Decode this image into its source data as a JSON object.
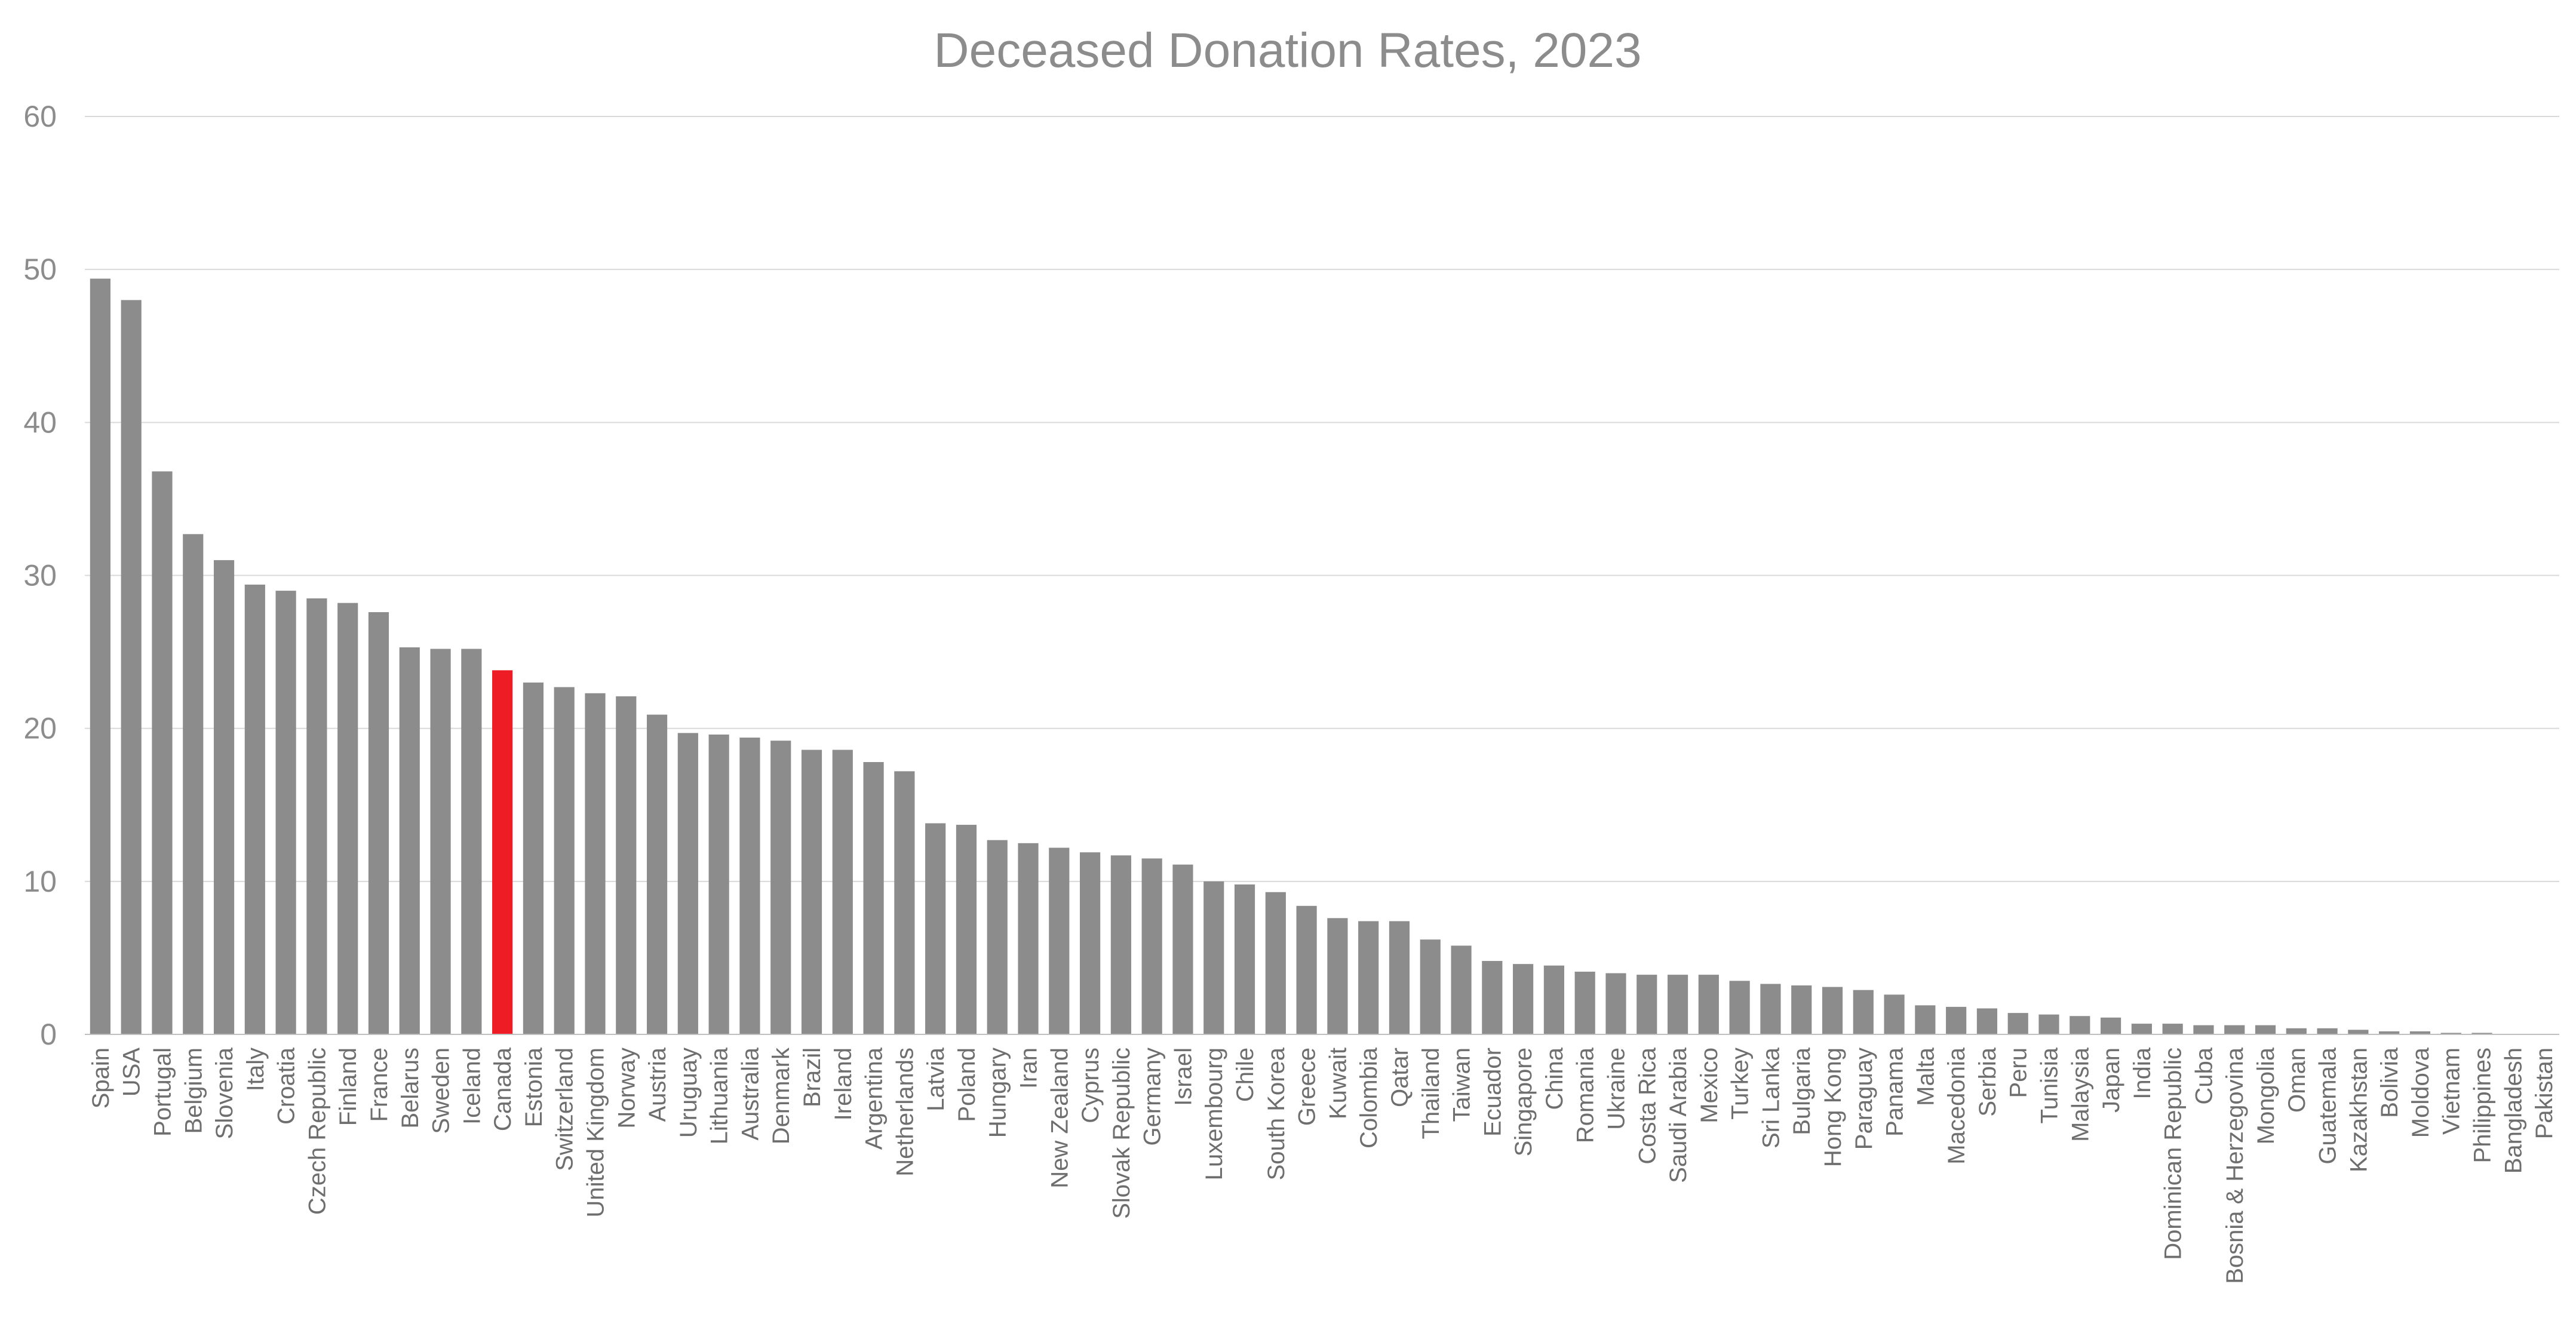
{
  "chart_data": {
    "type": "bar",
    "title": "Deceased Donation Rates, 2023",
    "xlabel": "",
    "ylabel": "",
    "ylim": [
      0,
      60
    ],
    "yticks": [
      0,
      10,
      20,
      30,
      40,
      50,
      60
    ],
    "grid": true,
    "legend": "none",
    "bar_color": "#8c8c8c",
    "highlight_color": "#ee1c24",
    "highlight": "Canada",
    "categories": [
      "Spain",
      "USA",
      "Portugal",
      "Belgium",
      "Slovenia",
      "Italy",
      "Croatia",
      "Czech Republic",
      "Finland",
      "France",
      "Belarus",
      "Sweden",
      "Iceland",
      "Canada",
      "Estonia",
      "Switzerland",
      "United Kingdom",
      "Norway",
      "Austria",
      "Uruguay",
      "Lithuania",
      "Australia",
      "Denmark",
      "Brazil",
      "Ireland",
      "Argentina",
      "Netherlands",
      "Latvia",
      "Poland",
      "Hungary",
      "Iran",
      "New Zealand",
      "Cyprus",
      "Slovak Republic",
      "Germany",
      "Israel",
      "Luxembourg",
      "Chile",
      "South Korea",
      "Greece",
      "Kuwait",
      "Colombia",
      "Qatar",
      "Thailand",
      "Taiwan",
      "Ecuador",
      "Singapore",
      "China",
      "Romania",
      "Ukraine",
      "Costa Rica",
      "Saudi Arabia",
      "Mexico",
      "Turkey",
      "Sri Lanka",
      "Bulgaria",
      "Hong Kong",
      "Paraguay",
      "Panama",
      "Malta",
      "Macedonia",
      "Serbia",
      "Peru",
      "Tunisia",
      "Malaysia",
      "Japan",
      "India",
      "Dominican Republic",
      "Cuba",
      "Bosnia & Herzegovina",
      "Mongolia",
      "Oman",
      "Guatemala",
      "Kazakhstan",
      "Bolivia",
      "Moldova",
      "Vietnam",
      "Philippines",
      "Bangladesh",
      "Pakistan"
    ],
    "values": [
      49.4,
      48.0,
      36.8,
      32.7,
      31.0,
      29.4,
      29.0,
      28.5,
      28.2,
      27.6,
      25.3,
      25.2,
      25.2,
      23.8,
      23.0,
      22.7,
      22.3,
      22.1,
      20.9,
      19.7,
      19.6,
      19.4,
      19.2,
      18.6,
      18.6,
      17.8,
      17.2,
      13.8,
      13.7,
      12.7,
      12.5,
      12.2,
      11.9,
      11.7,
      11.5,
      11.1,
      10.0,
      9.8,
      9.3,
      8.4,
      7.6,
      7.4,
      7.4,
      6.2,
      5.8,
      4.8,
      4.6,
      4.5,
      4.1,
      4.0,
      3.9,
      3.9,
      3.9,
      3.5,
      3.3,
      3.2,
      3.1,
      2.9,
      2.6,
      1.9,
      1.8,
      1.7,
      1.4,
      1.3,
      1.2,
      1.1,
      0.7,
      0.7,
      0.6,
      0.6,
      0.6,
      0.4,
      0.4,
      0.3,
      0.2,
      0.2,
      0.1,
      0.1,
      0.0,
      0.0
    ]
  }
}
